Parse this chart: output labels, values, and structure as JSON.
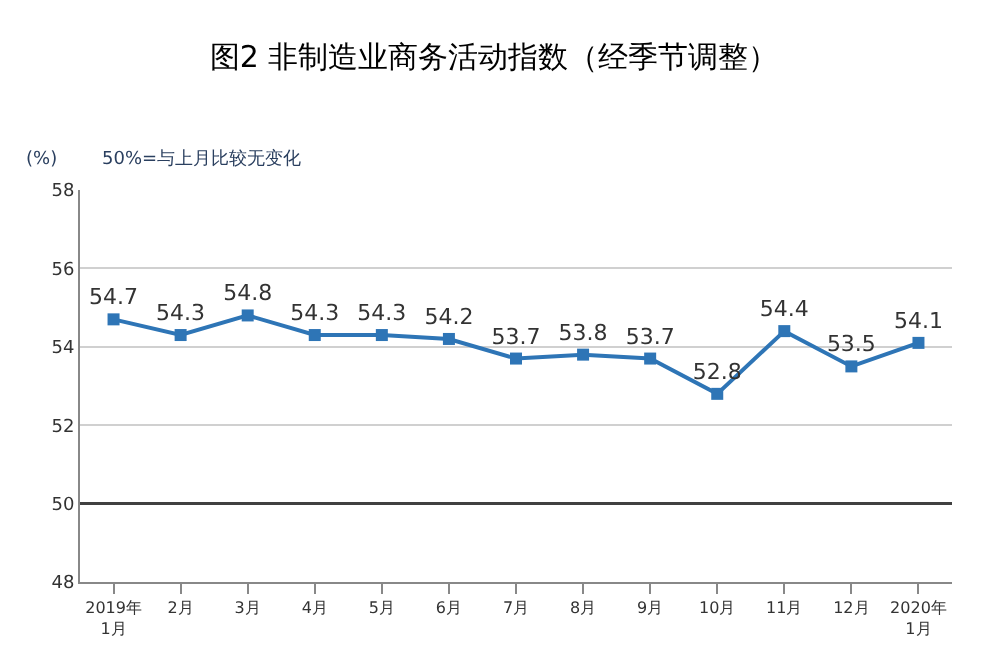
{
  "chart_data": {
    "type": "line",
    "title": "图2 非制造业商务活动指数（经季节调整）",
    "ylabel": "(%)",
    "annotations": [
      "50%=与上月比较无变化"
    ],
    "categories": [
      "2019年\n1月",
      "2月",
      "3月",
      "4月",
      "5月",
      "6月",
      "7月",
      "8月",
      "9月",
      "10月",
      "11月",
      "12月",
      "2020年\n1月"
    ],
    "series": [
      {
        "color": "#2e75b6",
        "values": [
          54.7,
          54.3,
          54.8,
          54.3,
          54.3,
          54.2,
          53.7,
          53.8,
          53.7,
          52.8,
          54.4,
          53.5,
          54.1
        ]
      }
    ],
    "ylim": [
      48,
      58
    ],
    "yticks": [
      48,
      50,
      52,
      54,
      56,
      58
    ],
    "grid": "y",
    "marker": "square",
    "line_style": "solid",
    "data_labels": true,
    "legend": false,
    "ref_lines": [
      {
        "axis": "y",
        "value": 50,
        "color": "#404040"
      }
    ]
  }
}
